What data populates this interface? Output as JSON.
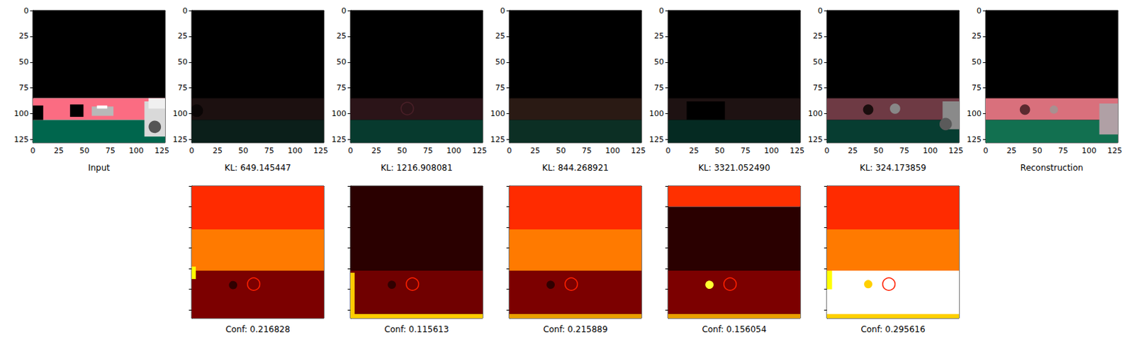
{
  "chart_data": [
    {
      "type": "image",
      "xlabel": "Input",
      "xlim": [
        0,
        128
      ],
      "ylim": [
        128,
        0
      ],
      "xticks": [
        0,
        25,
        50,
        75,
        100,
        125
      ],
      "yticks": [
        0,
        25,
        50,
        75,
        100,
        125
      ],
      "grid": false,
      "regions": [
        {
          "shape": "rect",
          "coords": [
            0,
            0,
            128,
            85
          ],
          "color": "#000000"
        },
        {
          "shape": "rect",
          "coords": [
            0,
            85,
            128,
            106
          ],
          "color": "#fb6c82"
        },
        {
          "shape": "rect",
          "coords": [
            0,
            106,
            128,
            128
          ],
          "color": "#00664d"
        },
        {
          "shape": "rect",
          "coords": [
            0,
            92,
            10,
            106
          ],
          "color": "#000000"
        },
        {
          "shape": "rect",
          "coords": [
            36,
            91,
            49,
            103
          ],
          "color": "#000000"
        },
        {
          "shape": "rect",
          "coords": [
            57,
            93,
            78,
            102
          ],
          "color": "#b8b8b8"
        },
        {
          "shape": "rect",
          "coords": [
            62,
            92,
            72,
            95
          ],
          "color": "#ffffff"
        },
        {
          "shape": "rect",
          "coords": [
            108,
            88,
            128,
            122
          ],
          "color": "#d9d9d9"
        },
        {
          "shape": "rect",
          "coords": [
            112,
            85,
            128,
            95
          ],
          "color": "#f0f0f0"
        },
        {
          "shape": "circle",
          "center": [
            118,
            112
          ],
          "r": 6,
          "color": "#555555"
        }
      ]
    },
    {
      "type": "image",
      "xlabel": "KL: 649.145447",
      "xlim": [
        0,
        128
      ],
      "ylim": [
        128,
        0
      ],
      "xticks": [
        0,
        25,
        50,
        75,
        100,
        125
      ],
      "yticks": [
        0,
        25,
        50,
        75,
        100,
        125
      ],
      "grid": false,
      "regions": [
        {
          "shape": "rect",
          "coords": [
            0,
            0,
            128,
            128
          ],
          "color": "#000000"
        },
        {
          "shape": "rect",
          "coords": [
            0,
            85,
            128,
            106
          ],
          "color": "#1c1010"
        },
        {
          "shape": "rect",
          "coords": [
            0,
            106,
            128,
            128
          ],
          "color": "#0b1f1a"
        },
        {
          "shape": "circle",
          "center": [
            5,
            97
          ],
          "r": 6,
          "color": "#0a0505"
        }
      ]
    },
    {
      "type": "image",
      "xlabel": "KL: 1216.908081",
      "xlim": [
        0,
        128
      ],
      "ylim": [
        128,
        0
      ],
      "xticks": [
        0,
        25,
        50,
        75,
        100,
        125
      ],
      "yticks": [
        0,
        25,
        50,
        75,
        100,
        125
      ],
      "grid": false,
      "regions": [
        {
          "shape": "rect",
          "coords": [
            0,
            0,
            128,
            128
          ],
          "color": "#000000"
        },
        {
          "shape": "rect",
          "coords": [
            0,
            85,
            128,
            106
          ],
          "color": "#2b1418"
        },
        {
          "shape": "rect",
          "coords": [
            0,
            106,
            128,
            128
          ],
          "color": "#073a2e"
        },
        {
          "shape": "ring",
          "center": [
            55,
            95
          ],
          "r": 6,
          "color": "#4a2028"
        }
      ]
    },
    {
      "type": "image",
      "xlabel": "KL: 844.268921",
      "xlim": [
        0,
        128
      ],
      "ylim": [
        128,
        0
      ],
      "xticks": [
        0,
        25,
        50,
        75,
        100,
        125
      ],
      "yticks": [
        0,
        25,
        50,
        75,
        100,
        125
      ],
      "grid": false,
      "regions": [
        {
          "shape": "rect",
          "coords": [
            0,
            0,
            128,
            128
          ],
          "color": "#000000"
        },
        {
          "shape": "rect",
          "coords": [
            0,
            85,
            128,
            106
          ],
          "color": "#2a1a14"
        },
        {
          "shape": "rect",
          "coords": [
            0,
            106,
            128,
            128
          ],
          "color": "#0c2f24"
        }
      ]
    },
    {
      "type": "image",
      "xlabel": "KL: 3321.052490",
      "xlim": [
        0,
        128
      ],
      "ylim": [
        128,
        0
      ],
      "xticks": [
        0,
        25,
        50,
        75,
        100,
        125
      ],
      "yticks": [
        0,
        25,
        50,
        75,
        100,
        125
      ],
      "grid": false,
      "regions": [
        {
          "shape": "rect",
          "coords": [
            0,
            0,
            128,
            128
          ],
          "color": "#000000"
        },
        {
          "shape": "rect",
          "coords": [
            0,
            85,
            128,
            106
          ],
          "color": "#1e1212"
        },
        {
          "shape": "rect",
          "coords": [
            18,
            88,
            55,
            106
          ],
          "color": "#000000"
        },
        {
          "shape": "rect",
          "coords": [
            0,
            106,
            128,
            128
          ],
          "color": "#052a22"
        }
      ]
    },
    {
      "type": "image",
      "xlabel": "KL: 324.173859",
      "xlim": [
        0,
        128
      ],
      "ylim": [
        128,
        0
      ],
      "xticks": [
        0,
        25,
        50,
        75,
        100,
        125
      ],
      "yticks": [
        0,
        25,
        50,
        75,
        100,
        125
      ],
      "grid": false,
      "regions": [
        {
          "shape": "rect",
          "coords": [
            0,
            0,
            128,
            128
          ],
          "color": "#000000"
        },
        {
          "shape": "rect",
          "coords": [
            0,
            85,
            128,
            106
          ],
          "color": "#6e3a44"
        },
        {
          "shape": "rect",
          "coords": [
            0,
            106,
            128,
            128
          ],
          "color": "#073d31"
        },
        {
          "shape": "circle",
          "center": [
            40,
            96
          ],
          "r": 5,
          "color": "#1a0d0d"
        },
        {
          "shape": "circle",
          "center": [
            66,
            95
          ],
          "r": 5,
          "color": "#888888"
        },
        {
          "shape": "rect",
          "coords": [
            112,
            88,
            128,
            115
          ],
          "color": "#8a8a8a"
        },
        {
          "shape": "circle",
          "center": [
            115,
            110
          ],
          "r": 6,
          "color": "#5a5a5a"
        }
      ]
    },
    {
      "type": "image",
      "xlabel": "Reconstruction",
      "xlim": [
        0,
        128
      ],
      "ylim": [
        128,
        0
      ],
      "xticks": [
        0,
        25,
        50,
        75,
        100,
        125
      ],
      "yticks": [
        0,
        25,
        50,
        75,
        100,
        125
      ],
      "grid": false,
      "regions": [
        {
          "shape": "rect",
          "coords": [
            0,
            0,
            128,
            128
          ],
          "color": "#000000"
        },
        {
          "shape": "rect",
          "coords": [
            0,
            85,
            128,
            106
          ],
          "color": "#d9707c"
        },
        {
          "shape": "rect",
          "coords": [
            0,
            106,
            128,
            128
          ],
          "color": "#127050"
        },
        {
          "shape": "circle",
          "center": [
            38,
            96
          ],
          "r": 5,
          "color": "#5a2a30"
        },
        {
          "shape": "circle",
          "center": [
            66,
            96
          ],
          "r": 4,
          "color": "#a89090"
        },
        {
          "shape": "rect",
          "coords": [
            110,
            90,
            128,
            120
          ],
          "color": "#b0a0a5"
        }
      ]
    },
    {
      "type": "heatmap",
      "xlabel": "Conf: 0.216828",
      "xlim": [
        0,
        128
      ],
      "ylim": [
        128,
        0
      ],
      "xticks": [
        0,
        20,
        40,
        60,
        80,
        100,
        120
      ],
      "yticks": [
        0,
        20,
        40,
        60,
        80,
        100,
        120
      ],
      "grid": false,
      "tick_labels": false,
      "regions": [
        {
          "shape": "rect",
          "coords": [
            0,
            0,
            128,
            42
          ],
          "color": "#ff2b00"
        },
        {
          "shape": "rect",
          "coords": [
            0,
            42,
            128,
            82
          ],
          "color": "#ff7a00"
        },
        {
          "shape": "rect",
          "coords": [
            0,
            82,
            128,
            128
          ],
          "color": "#7c0000"
        },
        {
          "shape": "circle",
          "center": [
            40,
            95
          ],
          "r": 4,
          "color": "#300000"
        },
        {
          "shape": "ring",
          "center": [
            60,
            95
          ],
          "r": 6,
          "color": "#ff2000"
        },
        {
          "shape": "rect",
          "coords": [
            0,
            78,
            4,
            90
          ],
          "color": "#ffff00"
        }
      ]
    },
    {
      "type": "heatmap",
      "xlabel": "Conf: 0.115613",
      "xlim": [
        0,
        128
      ],
      "ylim": [
        128,
        0
      ],
      "xticks": [
        0,
        20,
        40,
        60,
        80,
        100,
        120
      ],
      "yticks": [
        0,
        20,
        40,
        60,
        80,
        100,
        120
      ],
      "grid": false,
      "tick_labels": false,
      "regions": [
        {
          "shape": "rect",
          "coords": [
            0,
            0,
            128,
            82
          ],
          "color": "#2a0000"
        },
        {
          "shape": "rect",
          "coords": [
            0,
            82,
            128,
            128
          ],
          "color": "#700000"
        },
        {
          "shape": "rect",
          "coords": [
            0,
            124,
            128,
            128
          ],
          "color": "#ffcc00"
        },
        {
          "shape": "rect",
          "coords": [
            0,
            84,
            4,
            124
          ],
          "color": "#ffcc00"
        },
        {
          "shape": "circle",
          "center": [
            40,
            95
          ],
          "r": 4,
          "color": "#300000"
        },
        {
          "shape": "ring",
          "center": [
            60,
            95
          ],
          "r": 6,
          "color": "#ff2000"
        }
      ]
    },
    {
      "type": "heatmap",
      "xlabel": "Conf: 0.215889",
      "xlim": [
        0,
        128
      ],
      "ylim": [
        128,
        0
      ],
      "xticks": [
        0,
        20,
        40,
        60,
        80,
        100,
        120
      ],
      "yticks": [
        0,
        20,
        40,
        60,
        80,
        100,
        120
      ],
      "grid": false,
      "tick_labels": false,
      "regions": [
        {
          "shape": "rect",
          "coords": [
            0,
            0,
            128,
            42
          ],
          "color": "#ff2b00"
        },
        {
          "shape": "rect",
          "coords": [
            0,
            42,
            128,
            82
          ],
          "color": "#ff7a00"
        },
        {
          "shape": "rect",
          "coords": [
            0,
            82,
            128,
            128
          ],
          "color": "#7c0000"
        },
        {
          "shape": "rect",
          "coords": [
            0,
            124,
            128,
            128
          ],
          "color": "#e8a000"
        },
        {
          "shape": "circle",
          "center": [
            40,
            95
          ],
          "r": 4,
          "color": "#300000"
        },
        {
          "shape": "ring",
          "center": [
            60,
            95
          ],
          "r": 6,
          "color": "#ff2000"
        }
      ]
    },
    {
      "type": "heatmap",
      "xlabel": "Conf: 0.156054",
      "xlim": [
        0,
        128
      ],
      "ylim": [
        128,
        0
      ],
      "xticks": [
        0,
        20,
        40,
        60,
        80,
        100,
        120
      ],
      "yticks": [
        0,
        20,
        40,
        60,
        80,
        100,
        120
      ],
      "grid": false,
      "tick_labels": false,
      "regions": [
        {
          "shape": "rect",
          "coords": [
            0,
            0,
            128,
            20
          ],
          "color": "#ff3000"
        },
        {
          "shape": "rect",
          "coords": [
            0,
            20,
            128,
            82
          ],
          "color": "#2a0000"
        },
        {
          "shape": "rect",
          "coords": [
            0,
            82,
            128,
            128
          ],
          "color": "#7c0000"
        },
        {
          "shape": "rect",
          "coords": [
            0,
            124,
            128,
            128
          ],
          "color": "#e8a000"
        },
        {
          "shape": "circle",
          "center": [
            40,
            95
          ],
          "r": 4,
          "color": "#ffff30"
        },
        {
          "shape": "ring",
          "center": [
            60,
            95
          ],
          "r": 6,
          "color": "#ff2000"
        }
      ]
    },
    {
      "type": "heatmap",
      "xlabel": "Conf: 0.295616",
      "xlim": [
        0,
        128
      ],
      "ylim": [
        128,
        0
      ],
      "xticks": [
        0,
        20,
        40,
        60,
        80,
        100,
        120
      ],
      "yticks": [
        0,
        20,
        40,
        60,
        80,
        100,
        120
      ],
      "grid": false,
      "tick_labels": false,
      "regions": [
        {
          "shape": "rect",
          "coords": [
            0,
            0,
            128,
            42
          ],
          "color": "#ff2b00"
        },
        {
          "shape": "rect",
          "coords": [
            0,
            42,
            128,
            82
          ],
          "color": "#ff7a00"
        },
        {
          "shape": "rect",
          "coords": [
            0,
            82,
            128,
            126
          ],
          "color": "#ffffff"
        },
        {
          "shape": "rect",
          "coords": [
            0,
            124,
            128,
            128
          ],
          "color": "#ffd000"
        },
        {
          "shape": "rect",
          "coords": [
            0,
            82,
            5,
            100
          ],
          "color": "#ffff00"
        },
        {
          "shape": "circle",
          "center": [
            40,
            95
          ],
          "r": 4,
          "color": "#ffd000"
        },
        {
          "shape": "ring",
          "center": [
            60,
            95
          ],
          "r": 6,
          "color": "#ff2000"
        }
      ]
    }
  ]
}
